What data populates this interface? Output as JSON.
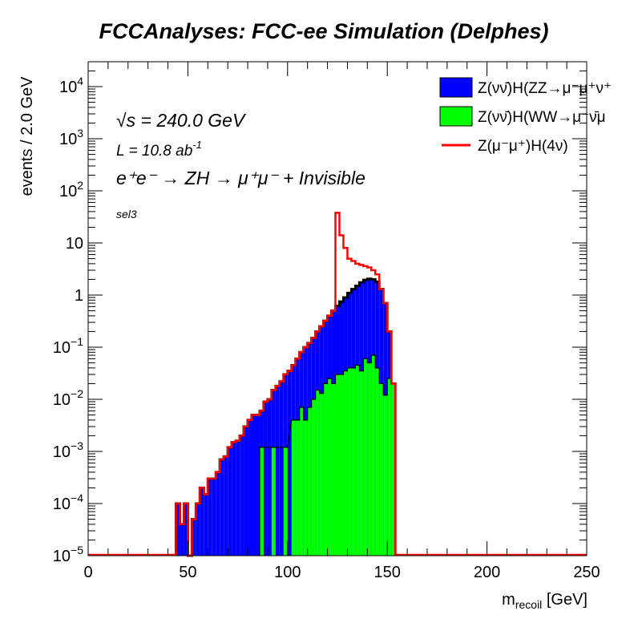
{
  "title": "FCCAnalyses: FCC-ee Simulation (Delphes)",
  "annotations": {
    "energy": "√s = 240.0 GeV",
    "lumi_base": "L = 10.8 ab",
    "lumi_exp": "-1",
    "process": "e⁺e⁻ → ZH → μ⁺μ⁻ + Invisible",
    "selection": "sel3"
  },
  "chart_data": {
    "type": "histogram",
    "title": "FCCAnalyses: FCC-ee Simulation (Delphes)",
    "xlabel_main": "m",
    "xlabel_sub": "recoil",
    "xlabel_unit": " [GeV]",
    "ylabel": "events / 2.0 GeV",
    "xlim": [
      0,
      250
    ],
    "ylim": [
      1e-05,
      30000.0
    ],
    "log_y": true,
    "grid": false,
    "legend_position": "top-right",
    "x_ticks": [
      0,
      50,
      100,
      150,
      200,
      250
    ],
    "y_ticks": [
      {
        "value": 1e-05,
        "base": "10",
        "exp": "−5"
      },
      {
        "value": 0.0001,
        "base": "10",
        "exp": "−4"
      },
      {
        "value": 0.001,
        "base": "10",
        "exp": "−3"
      },
      {
        "value": 0.01,
        "base": "10",
        "exp": "−2"
      },
      {
        "value": 0.1,
        "base": "10",
        "exp": "−1"
      },
      {
        "value": 1,
        "base": "1",
        "exp": ""
      },
      {
        "value": 10,
        "base": "10",
        "exp": ""
      },
      {
        "value": 100,
        "base": "10",
        "exp": "2"
      },
      {
        "value": 1000,
        "base": "10",
        "exp": "3"
      },
      {
        "value": 10000,
        "base": "10",
        "exp": "4"
      }
    ],
    "bin_width": 2,
    "series": [
      {
        "name": "Z(νν̄)H(ZZ→μ⁻μ⁺ν⁺",
        "style": "stacked-fill",
        "color": "#0000ff",
        "points": [
          [
            44,
            0.0001
          ],
          [
            46,
            4e-05
          ],
          [
            48,
            0.0001
          ],
          [
            50,
            1e-05
          ],
          [
            52,
            5e-05
          ],
          [
            54,
            0.0001
          ],
          [
            56,
            0.0002
          ],
          [
            58,
            0.00015
          ],
          [
            60,
            0.0003
          ],
          [
            62,
            0.0003
          ],
          [
            64,
            0.0004
          ],
          [
            66,
            0.0007
          ],
          [
            68,
            0.0008
          ],
          [
            70,
            0.0012
          ],
          [
            72,
            0.0015
          ],
          [
            74,
            0.0016
          ],
          [
            76,
            0.002
          ],
          [
            78,
            0.003
          ],
          [
            80,
            0.004
          ],
          [
            82,
            0.005
          ],
          [
            84,
            0.005
          ],
          [
            86,
            0.006
          ],
          [
            88,
            0.009
          ],
          [
            90,
            0.01
          ],
          [
            92,
            0.015
          ],
          [
            94,
            0.018
          ],
          [
            96,
            0.022
          ],
          [
            98,
            0.03
          ],
          [
            100,
            0.035
          ],
          [
            102,
            0.045
          ],
          [
            104,
            0.06
          ],
          [
            106,
            0.08
          ],
          [
            108,
            0.1
          ],
          [
            110,
            0.12
          ],
          [
            112,
            0.15
          ],
          [
            114,
            0.2
          ],
          [
            116,
            0.25
          ],
          [
            118,
            0.32
          ],
          [
            120,
            0.4
          ],
          [
            122,
            0.5
          ],
          [
            124,
            0.62
          ],
          [
            126,
            0.75
          ],
          [
            128,
            0.9
          ],
          [
            130,
            1.1
          ],
          [
            132,
            1.3
          ],
          [
            134,
            1.5
          ],
          [
            136,
            1.75
          ],
          [
            138,
            1.95
          ],
          [
            140,
            2.05
          ],
          [
            142,
            2.0
          ],
          [
            144,
            1.8
          ],
          [
            146,
            1.3
          ],
          [
            148,
            0.7
          ],
          [
            150,
            0.2
          ],
          [
            152,
            0.02
          ]
        ]
      },
      {
        "name": "Z(νν̄)H(WW→μ⁻ν̄μ",
        "style": "stacked-fill",
        "color": "#00ff00",
        "points": [
          [
            86,
            0.0012
          ],
          [
            92,
            0.0012
          ],
          [
            98,
            0.0012
          ],
          [
            102,
            0.004
          ],
          [
            104,
            0.004
          ],
          [
            106,
            0.007
          ],
          [
            108,
            0.004
          ],
          [
            110,
            0.007
          ],
          [
            112,
            0.01
          ],
          [
            114,
            0.015
          ],
          [
            116,
            0.013
          ],
          [
            118,
            0.02
          ],
          [
            120,
            0.025
          ],
          [
            122,
            0.02
          ],
          [
            124,
            0.03
          ],
          [
            126,
            0.03
          ],
          [
            128,
            0.035
          ],
          [
            130,
            0.04
          ],
          [
            132,
            0.04
          ],
          [
            134,
            0.045
          ],
          [
            136,
            0.035
          ],
          [
            138,
            0.06
          ],
          [
            140,
            0.05
          ],
          [
            142,
            0.07
          ],
          [
            144,
            0.04
          ],
          [
            146,
            0.02
          ],
          [
            148,
            0.012
          ],
          [
            150,
            0.025
          ],
          [
            152,
            0.02
          ]
        ]
      },
      {
        "name": "Z(μ⁻μ⁺)H(4ν)",
        "style": "line",
        "color": "#ff0000",
        "points": [
          [
            124,
            38
          ],
          [
            126,
            14
          ],
          [
            128,
            8
          ],
          [
            130,
            5
          ],
          [
            132,
            4.5
          ],
          [
            134,
            4
          ],
          [
            136,
            3.8
          ],
          [
            138,
            3.6
          ],
          [
            140,
            3.4
          ],
          [
            142,
            3.0
          ],
          [
            144,
            2.5
          ]
        ]
      }
    ]
  }
}
